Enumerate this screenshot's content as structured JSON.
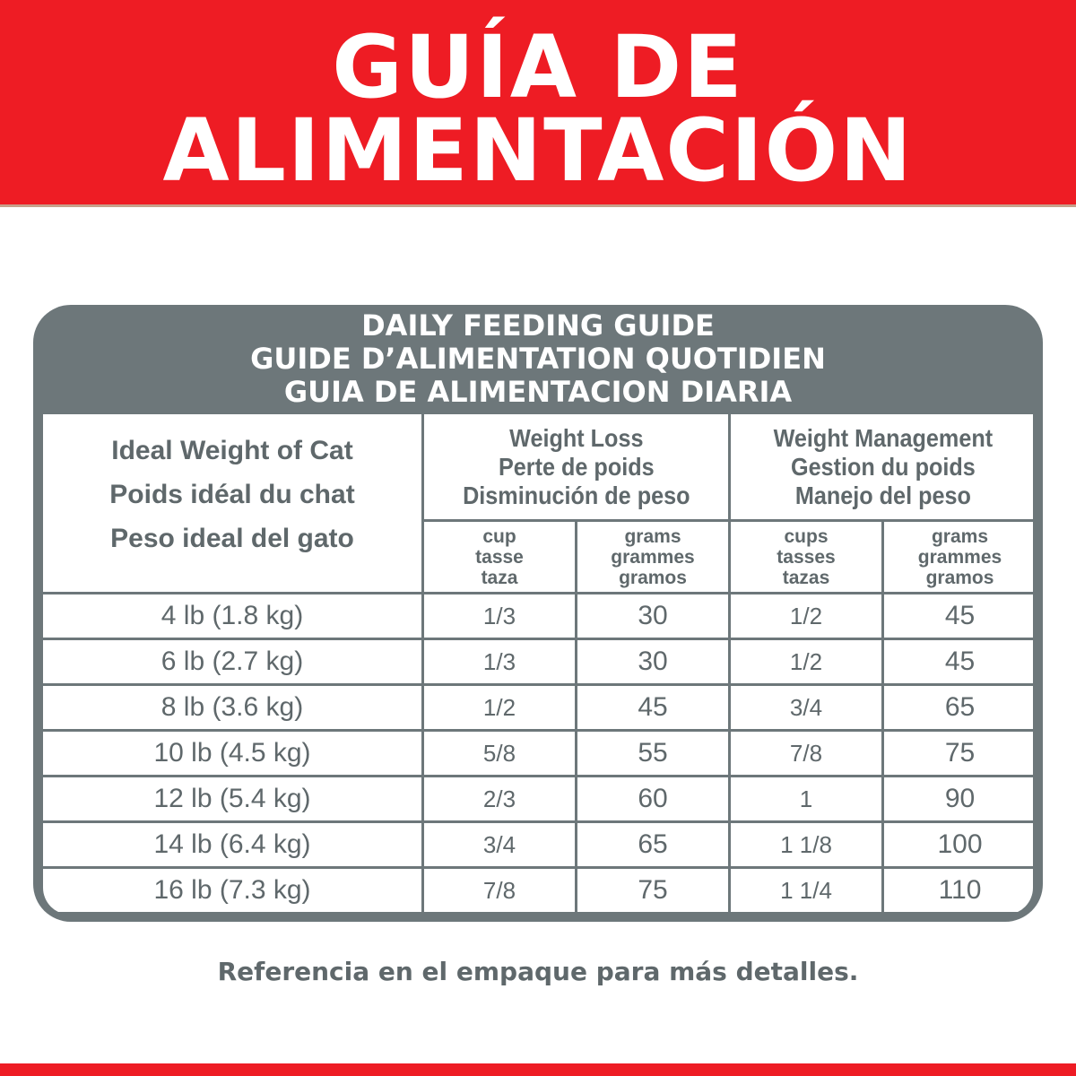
{
  "banner": {
    "line1": "GUÍA DE",
    "line2": "ALIMENTACIÓN"
  },
  "guide": {
    "title_en": "DAILY FEEDING GUIDE",
    "title_fr": "GUIDE D’ALIMENTATION QUOTIDIEN",
    "title_es": "GUIA DE ALIMENTACION DIARIA"
  },
  "table": {
    "weight_header": [
      "Ideal Weight of Cat",
      "Poids idéal du chat",
      "Peso ideal del gato"
    ],
    "loss_header": [
      "Weight Loss",
      "Perte de poids",
      "Disminución de peso"
    ],
    "mgmt_header": [
      "Weight Management",
      "Gestion du poids",
      "Manejo del peso"
    ],
    "sub_headers": [
      [
        "cup",
        "tasse",
        "taza"
      ],
      [
        "grams",
        "grammes",
        "gramos"
      ],
      [
        "cups",
        "tasses",
        "tazas"
      ],
      [
        "grams",
        "grammes",
        "gramos"
      ]
    ],
    "rows": [
      [
        "4 lb (1.8 kg)",
        "1/3",
        "30",
        "1/2",
        "45"
      ],
      [
        "6 lb (2.7 kg)",
        "1/3",
        "30",
        "1/2",
        "45"
      ],
      [
        "8 lb (3.6 kg)",
        "1/2",
        "45",
        "3/4",
        "65"
      ],
      [
        "10 lb (4.5 kg)",
        "5/8",
        "55",
        "7/8",
        "75"
      ],
      [
        "12 lb (5.4 kg)",
        "2/3",
        "60",
        "1",
        "90"
      ],
      [
        "14 lb (6.4 kg)",
        "3/4",
        "65",
        "1 1/8",
        "100"
      ],
      [
        "16 lb (7.3 kg)",
        "7/8",
        "75",
        "1 1/4",
        "110"
      ]
    ]
  },
  "footer": "Referencia en el empaque para más detalles.",
  "colors": {
    "brand_red": "#ee1c24",
    "panel_gray": "#6d777a",
    "text_gray": "#5f686b"
  }
}
